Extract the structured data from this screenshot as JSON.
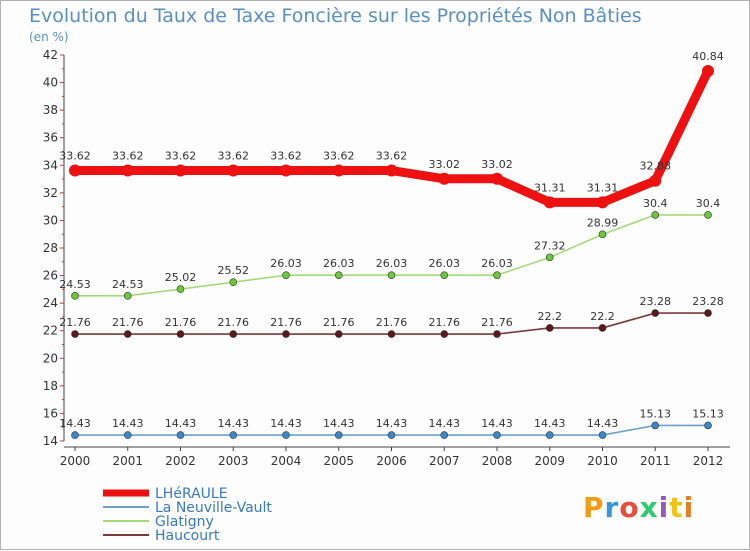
{
  "title": "Evolution du Taux de Taxe Foncière sur les Propriétés Non Bâties",
  "unit_label": "(en %)",
  "logo": {
    "text": "Proxiti",
    "colors": [
      "#f39c12",
      "#3498db",
      "#e74c3c",
      "#2ecc71",
      "#9b59b6",
      "#f1c40f",
      "#e67e22"
    ]
  },
  "chart_data": {
    "type": "line",
    "title": "Evolution du Taux de Taxe Foncière sur les Propriétés Non Bâties",
    "ylabel": "(en %)",
    "xlabel": "",
    "ylim": [
      14,
      42
    ],
    "yticks": [
      14,
      16,
      18,
      20,
      22,
      24,
      26,
      28,
      30,
      32,
      34,
      36,
      38,
      40,
      42
    ],
    "categories": [
      "2000",
      "2001",
      "2002",
      "2003",
      "2004",
      "2005",
      "2006",
      "2007",
      "2008",
      "2009",
      "2010",
      "2011",
      "2012"
    ],
    "series": [
      {
        "name": "LHéRAULE",
        "color": "#ee1111",
        "emphasis": true,
        "values": [
          33.62,
          33.62,
          33.62,
          33.62,
          33.62,
          33.62,
          33.62,
          33.02,
          33.02,
          31.31,
          31.31,
          32.88,
          40.84
        ],
        "labels": [
          "33.62",
          "33.62",
          "33.62",
          "33.62",
          "33.62",
          "33.62",
          "33.62",
          "33.02",
          "33.02",
          "31.31",
          "31.31",
          "32.88",
          "40.84"
        ]
      },
      {
        "name": "La Neuville-Vault",
        "color": "#6e9fd0",
        "marker": "#3d87c9",
        "values": [
          14.43,
          14.43,
          14.43,
          14.43,
          14.43,
          14.43,
          14.43,
          14.43,
          14.43,
          14.43,
          14.43,
          15.13,
          15.13
        ],
        "labels": [
          "14.43",
          "14.43",
          "14.43",
          "14.43",
          "14.43",
          "14.43",
          "14.43",
          "14.43",
          "14.43",
          "14.43",
          "14.43",
          "15.13",
          "15.13"
        ]
      },
      {
        "name": "Glatigny",
        "color": "#a6d97a",
        "marker": "#6cc73a",
        "values": [
          24.53,
          24.53,
          25.02,
          25.52,
          26.03,
          26.03,
          26.03,
          26.03,
          26.03,
          27.32,
          28.99,
          30.4,
          30.4
        ],
        "labels": [
          "24.53",
          "24.53",
          "25.02",
          "25.52",
          "26.03",
          "26.03",
          "26.03",
          "26.03",
          "26.03",
          "27.32",
          "28.99",
          "30.4",
          "30.4"
        ]
      },
      {
        "name": "Haucourt",
        "color": "#7a3a3a",
        "marker": "#5a1a1a",
        "values": [
          21.76,
          21.76,
          21.76,
          21.76,
          21.76,
          21.76,
          21.76,
          21.76,
          21.76,
          22.2,
          22.2,
          23.28,
          23.28
        ],
        "labels": [
          "21.76",
          "21.76",
          "21.76",
          "21.76",
          "21.76",
          "21.76",
          "21.76",
          "21.76",
          "21.76",
          "22.2",
          "22.2",
          "23.28",
          "23.28"
        ]
      }
    ],
    "legend_position": "bottom-left"
  }
}
